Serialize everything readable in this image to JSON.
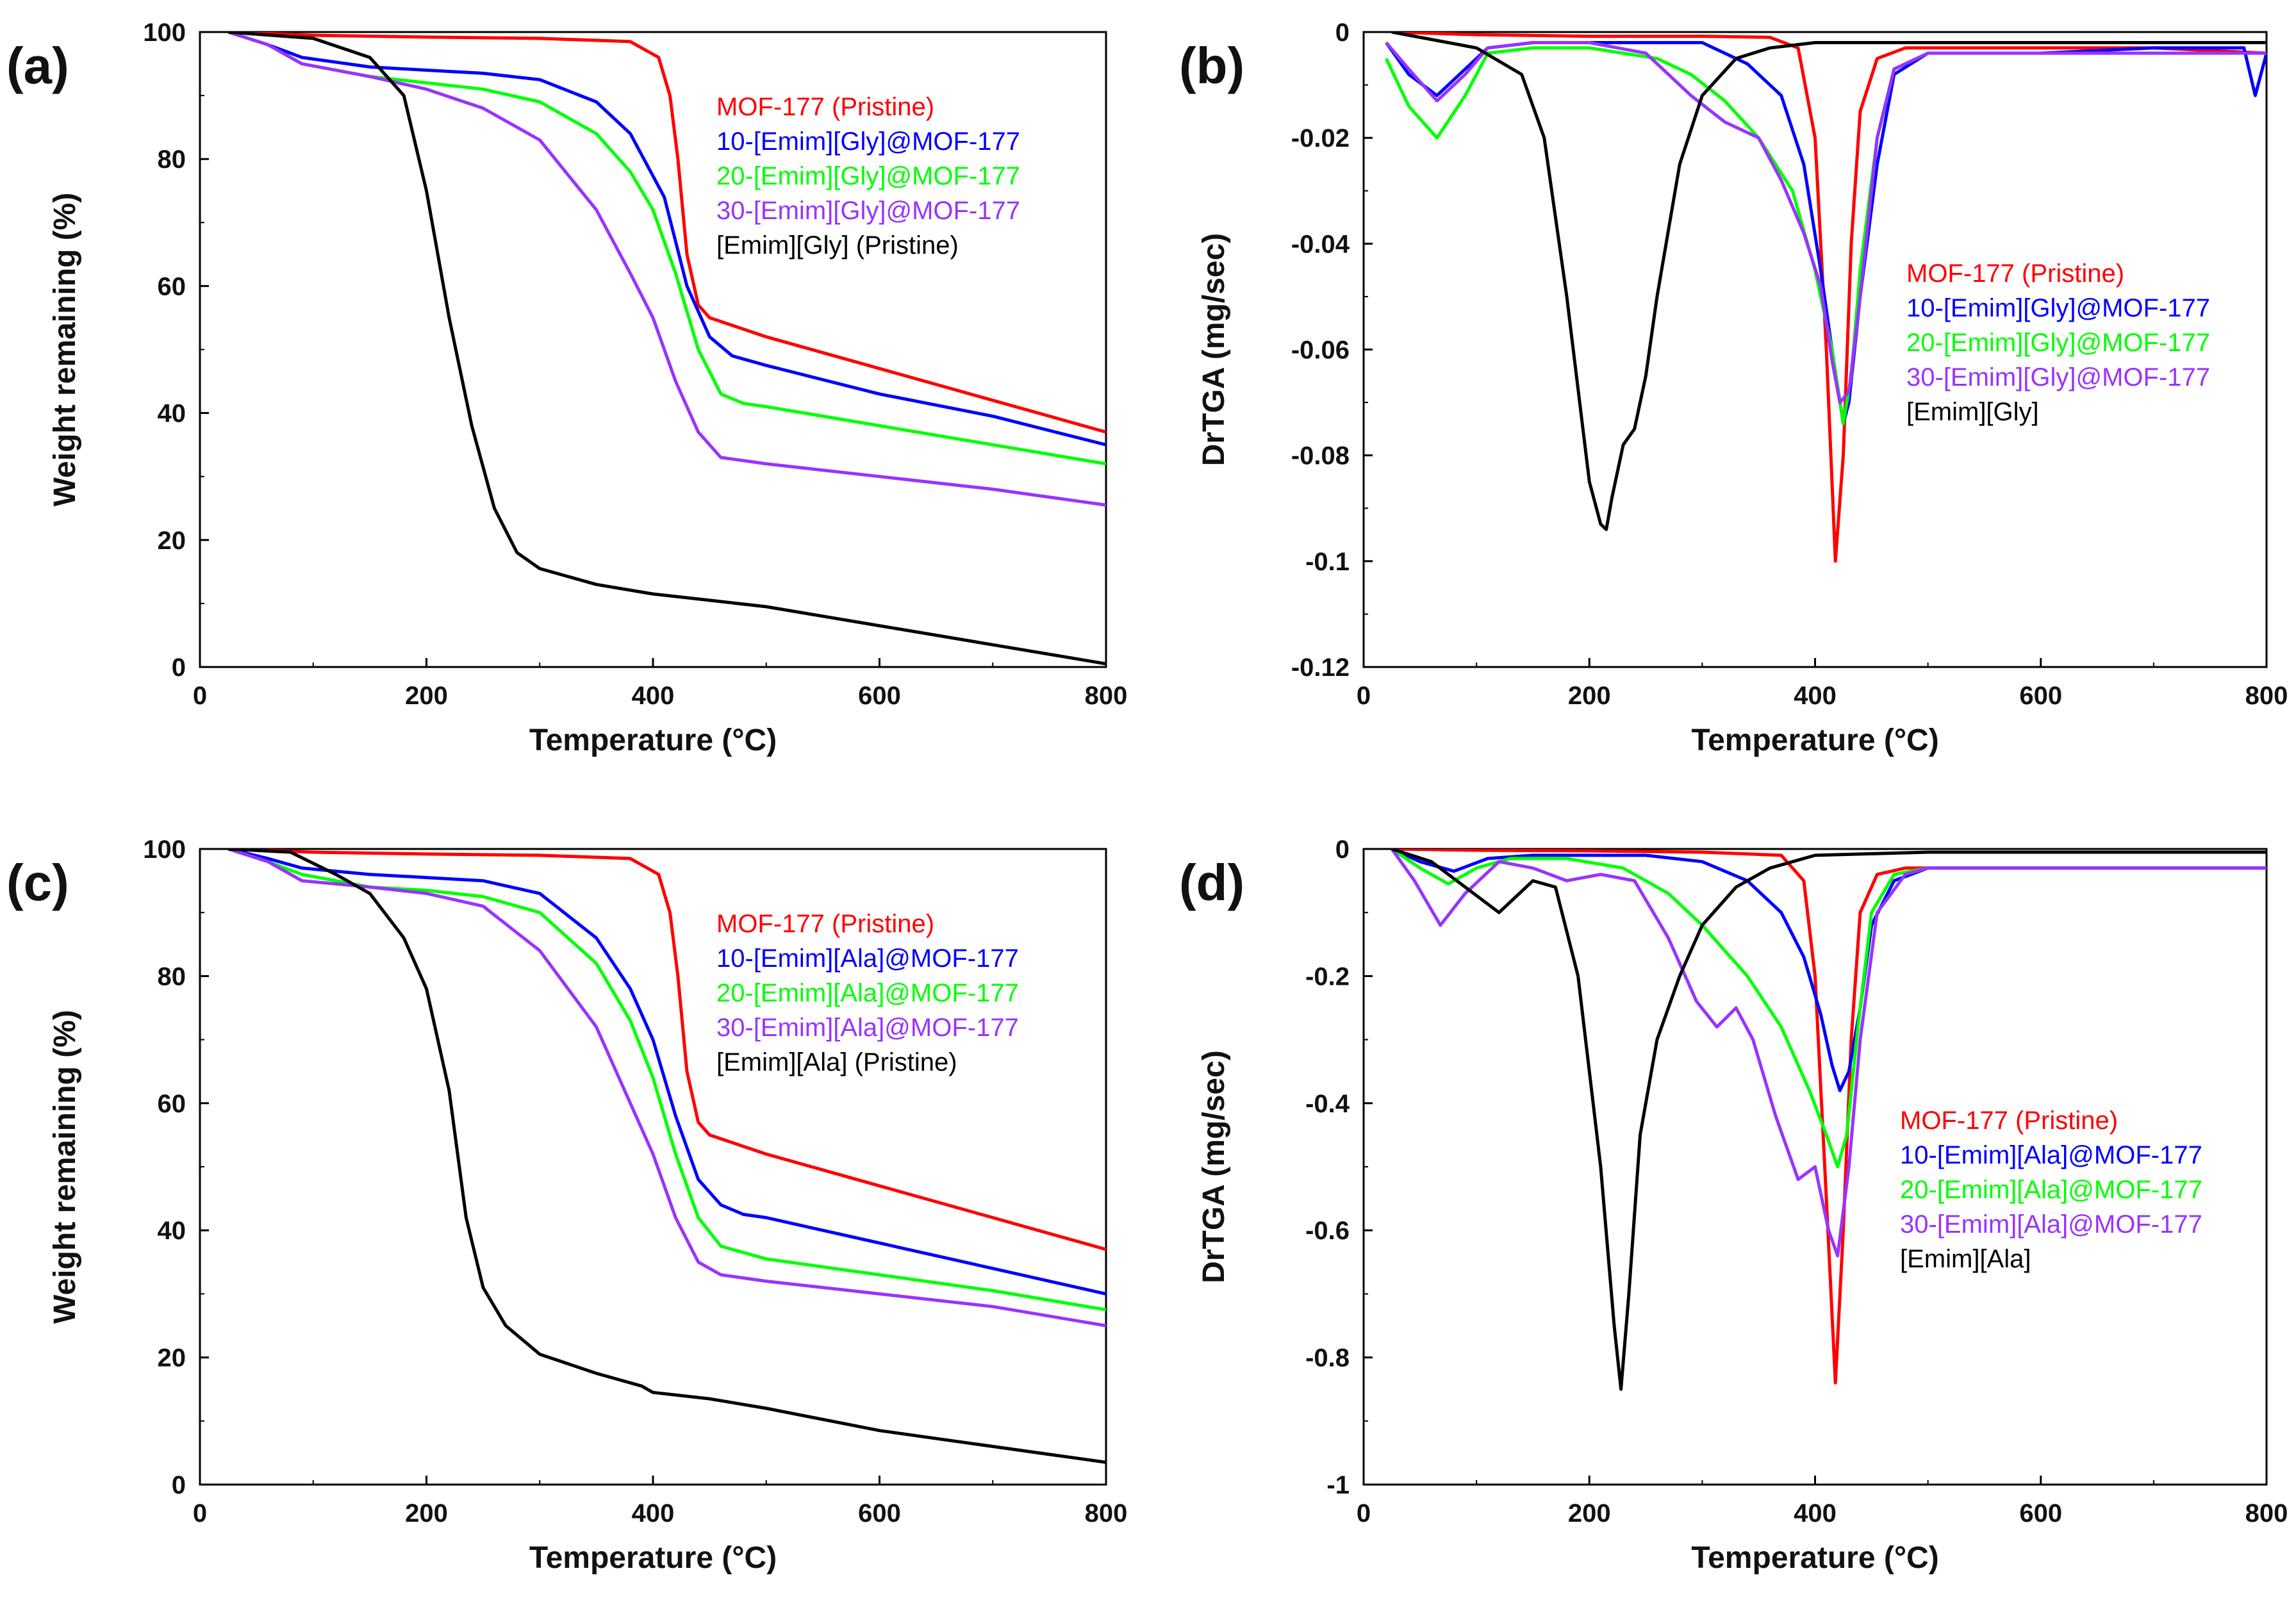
{
  "chart_data": [
    {
      "panel": "(a)",
      "type": "line",
      "xlabel": "Temperature (°C)",
      "ylabel": "Weight remaining (%)",
      "xlim": [
        0,
        800
      ],
      "ylim": [
        0,
        100
      ],
      "xticks": [
        "0",
        "200",
        "400",
        "600",
        "800"
      ],
      "yticks": [
        "0",
        "20",
        "40",
        "60",
        "80",
        "100"
      ],
      "legend_position": "upper-right",
      "series": [
        {
          "name": "MOF-177 (Pristine)",
          "color": "#ff0000",
          "x": [
            25,
            100,
            200,
            300,
            380,
            405,
            415,
            422,
            430,
            440,
            450,
            500,
            600,
            700,
            800
          ],
          "y": [
            100,
            99.5,
            99.2,
            99,
            98.5,
            96,
            90,
            80,
            65,
            57,
            55,
            52,
            47,
            42,
            37
          ]
        },
        {
          "name": "10-[Emim][Gly]@MOF-177",
          "color": "#0000ff",
          "x": [
            25,
            60,
            90,
            150,
            200,
            250,
            300,
            350,
            380,
            410,
            430,
            450,
            470,
            500,
            600,
            700,
            800
          ],
          "y": [
            100,
            98,
            96,
            94.5,
            94,
            93.5,
            92.5,
            89,
            84,
            74,
            60,
            52,
            49,
            47.5,
            43,
            39.5,
            35
          ]
        },
        {
          "name": "20-[Emim][Gly]@MOF-177",
          "color": "#00ff00",
          "x": [
            25,
            60,
            90,
            150,
            200,
            250,
            300,
            350,
            380,
            400,
            420,
            440,
            460,
            480,
            500,
            600,
            700,
            800
          ],
          "y": [
            100,
            98,
            95,
            93,
            92,
            91,
            89,
            84,
            78,
            72,
            62,
            50,
            43,
            41.5,
            41,
            38,
            35,
            32
          ]
        },
        {
          "name": "30-[Emim][Gly]@MOF-177",
          "color": "#9933ff",
          "x": [
            25,
            60,
            90,
            150,
            200,
            250,
            300,
            350,
            380,
            400,
            420,
            440,
            460,
            480,
            500,
            600,
            700,
            800
          ],
          "y": [
            100,
            98,
            95,
            93,
            91,
            88,
            83,
            72,
            62,
            55,
            45,
            37,
            33,
            32.5,
            32,
            30,
            28,
            25.5
          ]
        },
        {
          "name": "[Emim][Gly] (Pristine)",
          "color": "#000000",
          "x": [
            25,
            100,
            150,
            180,
            200,
            220,
            240,
            260,
            280,
            300,
            350,
            400,
            450,
            500,
            600,
            700,
            800
          ],
          "y": [
            100,
            99,
            96,
            90,
            75,
            55,
            38,
            25,
            18,
            15.5,
            13,
            11.5,
            10.5,
            9.5,
            6.5,
            3.5,
            0.5
          ]
        }
      ]
    },
    {
      "panel": "(b)",
      "type": "line",
      "xlabel": "Temperature (°C)",
      "ylabel": "DrTGA (mg/sec)",
      "xlim": [
        0,
        800
      ],
      "ylim": [
        -0.12,
        0
      ],
      "xticks": [
        "0",
        "200",
        "400",
        "600",
        "800"
      ],
      "yticks": [
        "0",
        "-0.02",
        "-0.04",
        "-0.06",
        "-0.08",
        "-0.1",
        "-0.12"
      ],
      "legend_position": "center-right",
      "series": [
        {
          "name": "MOF-177 (Pristine)",
          "color": "#ff0000",
          "x": [
            25,
            100,
            200,
            300,
            360,
            385,
            400,
            410,
            418,
            425,
            432,
            440,
            455,
            480,
            600,
            700,
            800
          ],
          "y": [
            0,
            -0.0005,
            -0.0008,
            -0.0008,
            -0.001,
            -0.003,
            -0.02,
            -0.06,
            -0.1,
            -0.08,
            -0.04,
            -0.015,
            -0.005,
            -0.003,
            -0.003,
            -0.003,
            -0.004
          ]
        },
        {
          "name": "10-[Emim][Gly]@MOF-177",
          "color": "#0000ff",
          "x": [
            20,
            40,
            65,
            90,
            110,
            150,
            200,
            260,
            300,
            340,
            370,
            390,
            405,
            415,
            425,
            430,
            440,
            455,
            470,
            500,
            600,
            700,
            780,
            790,
            800
          ],
          "y": [
            -0.002,
            -0.008,
            -0.012,
            -0.007,
            -0.003,
            -0.002,
            -0.002,
            -0.002,
            -0.002,
            -0.006,
            -0.012,
            -0.025,
            -0.045,
            -0.06,
            -0.074,
            -0.07,
            -0.05,
            -0.025,
            -0.008,
            -0.004,
            -0.004,
            -0.003,
            -0.003,
            -0.012,
            -0.004
          ]
        },
        {
          "name": "20-[Emim][Gly]@MOF-177",
          "color": "#00ff00",
          "x": [
            20,
            40,
            65,
            90,
            110,
            150,
            200,
            260,
            290,
            320,
            350,
            380,
            400,
            415,
            425,
            432,
            440,
            455,
            470,
            500,
            600,
            700,
            800
          ],
          "y": [
            -0.005,
            -0.014,
            -0.02,
            -0.012,
            -0.004,
            -0.003,
            -0.003,
            -0.005,
            -0.008,
            -0.013,
            -0.02,
            -0.03,
            -0.045,
            -0.06,
            -0.074,
            -0.065,
            -0.045,
            -0.02,
            -0.007,
            -0.004,
            -0.004,
            -0.004,
            -0.004
          ]
        },
        {
          "name": "30-[Emim][Gly]@MOF-177",
          "color": "#9933ff",
          "x": [
            20,
            40,
            65,
            90,
            110,
            150,
            200,
            250,
            290,
            320,
            350,
            370,
            390,
            405,
            415,
            422,
            430,
            440,
            455,
            470,
            500,
            600,
            700,
            800
          ],
          "y": [
            -0.002,
            -0.007,
            -0.013,
            -0.008,
            -0.003,
            -0.002,
            -0.002,
            -0.004,
            -0.012,
            -0.017,
            -0.02,
            -0.028,
            -0.038,
            -0.048,
            -0.062,
            -0.07,
            -0.068,
            -0.05,
            -0.02,
            -0.007,
            -0.004,
            -0.004,
            -0.004,
            -0.004
          ]
        },
        {
          "name": "[Emim][Gly]",
          "color": "#000000",
          "x": [
            25,
            100,
            140,
            160,
            180,
            200,
            210,
            215,
            220,
            230,
            240,
            250,
            260,
            280,
            300,
            330,
            360,
            400,
            500,
            600,
            700,
            800
          ],
          "y": [
            0,
            -0.003,
            -0.008,
            -0.02,
            -0.05,
            -0.085,
            -0.093,
            -0.094,
            -0.088,
            -0.078,
            -0.075,
            -0.065,
            -0.05,
            -0.025,
            -0.012,
            -0.005,
            -0.003,
            -0.002,
            -0.002,
            -0.002,
            -0.002,
            -0.002
          ]
        }
      ]
    },
    {
      "panel": "(c)",
      "type": "line",
      "xlabel": "Temperature (°C)",
      "ylabel": "Weight remaining (%)",
      "xlim": [
        0,
        800
      ],
      "ylim": [
        0,
        100
      ],
      "xticks": [
        "0",
        "200",
        "400",
        "600",
        "800"
      ],
      "yticks": [
        "0",
        "20",
        "40",
        "60",
        "80",
        "100"
      ],
      "legend_position": "upper-right",
      "series": [
        {
          "name": "MOF-177 (Pristine)",
          "color": "#ff0000",
          "x": [
            25,
            100,
            200,
            300,
            380,
            405,
            415,
            422,
            430,
            440,
            450,
            500,
            600,
            700,
            800
          ],
          "y": [
            100,
            99.5,
            99.2,
            99,
            98.5,
            96,
            90,
            80,
            65,
            57,
            55,
            52,
            47,
            42,
            37
          ]
        },
        {
          "name": "10-[Emim][Ala]@MOF-177",
          "color": "#0000ff",
          "x": [
            25,
            60,
            90,
            150,
            200,
            250,
            300,
            350,
            380,
            400,
            420,
            440,
            460,
            480,
            500,
            600,
            700,
            800
          ],
          "y": [
            100,
            98.5,
            97,
            96,
            95.5,
            95,
            93,
            86,
            78,
            70,
            58,
            48,
            44,
            42.5,
            42,
            38,
            34,
            30
          ]
        },
        {
          "name": "20-[Emim][Ala]@MOF-177",
          "color": "#00ff00",
          "x": [
            25,
            60,
            90,
            150,
            200,
            250,
            300,
            350,
            380,
            400,
            420,
            440,
            460,
            480,
            500,
            600,
            700,
            800
          ],
          "y": [
            100,
            98,
            96,
            94,
            93.5,
            92.5,
            90,
            82,
            73,
            64,
            52,
            42,
            37.5,
            36.5,
            35.5,
            33,
            30.5,
            27.5
          ]
        },
        {
          "name": "30-[Emim][Ala]@MOF-177",
          "color": "#9933ff",
          "x": [
            25,
            60,
            90,
            150,
            200,
            250,
            300,
            350,
            380,
            400,
            420,
            440,
            460,
            480,
            500,
            600,
            700,
            800
          ],
          "y": [
            100,
            98,
            95,
            94,
            93,
            91,
            84,
            72,
            60,
            52,
            42,
            35,
            33,
            32.5,
            32,
            30,
            28,
            25
          ]
        },
        {
          "name": "[Emim][Ala] (Pristine)",
          "color": "#000000",
          "x": [
            25,
            80,
            120,
            150,
            180,
            200,
            220,
            235,
            250,
            270,
            300,
            350,
            390,
            400,
            450,
            500,
            600,
            700,
            800
          ],
          "y": [
            100,
            99.5,
            96,
            93,
            86,
            78,
            62,
            42,
            31,
            25,
            20.5,
            17.5,
            15.5,
            14.5,
            13.5,
            12,
            8.5,
            6,
            3.5
          ]
        }
      ]
    },
    {
      "panel": "(d)",
      "type": "line",
      "xlabel": "Temperature (°C)",
      "ylabel": "DrTGA (mg/sec)",
      "xlim": [
        0,
        800
      ],
      "ylim": [
        -1,
        0
      ],
      "xticks": [
        "0",
        "200",
        "400",
        "600",
        "800"
      ],
      "yticks": [
        "0",
        "-0.2",
        "-0.4",
        "-0.6",
        "-0.8",
        "-1"
      ],
      "legend_position": "center-right",
      "series": [
        {
          "name": "MOF-177 (Pristine)",
          "color": "#ff0000",
          "x": [
            25,
            100,
            200,
            300,
            370,
            390,
            400,
            410,
            418,
            425,
            432,
            440,
            455,
            480,
            600,
            700,
            800
          ],
          "y": [
            0,
            -0.002,
            -0.003,
            -0.005,
            -0.01,
            -0.05,
            -0.2,
            -0.55,
            -0.84,
            -0.6,
            -0.3,
            -0.1,
            -0.04,
            -0.03,
            -0.03,
            -0.03,
            -0.03
          ]
        },
        {
          "name": "10-[Emim][Ala]@MOF-177",
          "color": "#0000ff",
          "x": [
            25,
            50,
            80,
            110,
            150,
            200,
            250,
            300,
            340,
            370,
            390,
            405,
            415,
            422,
            430,
            440,
            450,
            470,
            500,
            600,
            700,
            800
          ],
          "y": [
            0,
            -0.02,
            -0.035,
            -0.015,
            -0.01,
            -0.01,
            -0.01,
            -0.02,
            -0.05,
            -0.1,
            -0.17,
            -0.26,
            -0.34,
            -0.38,
            -0.35,
            -0.25,
            -0.12,
            -0.05,
            -0.03,
            -0.03,
            -0.03,
            -0.03
          ]
        },
        {
          "name": "20-[Emim][Ala]@MOF-177",
          "color": "#00ff00",
          "x": [
            25,
            50,
            75,
            100,
            130,
            180,
            230,
            270,
            300,
            340,
            370,
            395,
            410,
            420,
            428,
            438,
            450,
            470,
            500,
            600,
            700,
            800
          ],
          "y": [
            0,
            -0.03,
            -0.055,
            -0.03,
            -0.015,
            -0.015,
            -0.03,
            -0.07,
            -0.12,
            -0.2,
            -0.28,
            -0.38,
            -0.45,
            -0.5,
            -0.45,
            -0.28,
            -0.1,
            -0.04,
            -0.03,
            -0.03,
            -0.03,
            -0.03
          ]
        },
        {
          "name": "30-[Emim][Ala]@MOF-177",
          "color": "#9933ff",
          "x": [
            25,
            45,
            68,
            90,
            120,
            150,
            180,
            210,
            240,
            270,
            295,
            313,
            330,
            345,
            365,
            385,
            400,
            412,
            420,
            430,
            440,
            455,
            480,
            500,
            600,
            700,
            800
          ],
          "y": [
            0,
            -0.05,
            -0.12,
            -0.07,
            -0.02,
            -0.03,
            -0.05,
            -0.04,
            -0.05,
            -0.14,
            -0.24,
            -0.28,
            -0.25,
            -0.3,
            -0.42,
            -0.52,
            -0.5,
            -0.6,
            -0.64,
            -0.5,
            -0.3,
            -0.1,
            -0.04,
            -0.03,
            -0.03,
            -0.03,
            -0.03
          ]
        },
        {
          "name": "[Emim][Ala]",
          "color": "#000000",
          "x": [
            25,
            60,
            90,
            120,
            150,
            170,
            190,
            210,
            222,
            228,
            235,
            245,
            260,
            280,
            300,
            330,
            360,
            400,
            500,
            600,
            700,
            800
          ],
          "y": [
            0,
            -0.02,
            -0.06,
            -0.1,
            -0.05,
            -0.06,
            -0.2,
            -0.5,
            -0.75,
            -0.85,
            -0.7,
            -0.45,
            -0.3,
            -0.2,
            -0.12,
            -0.06,
            -0.03,
            -0.01,
            -0.005,
            -0.005,
            -0.005,
            -0.005
          ]
        }
      ]
    }
  ]
}
